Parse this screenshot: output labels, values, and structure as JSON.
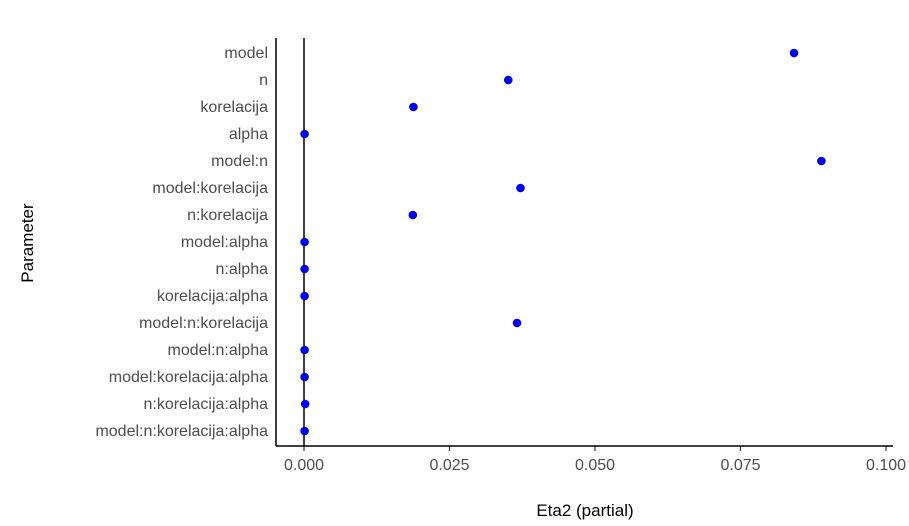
{
  "chart_data": {
    "type": "scatter",
    "xlabel": "Eta2 (partial)",
    "ylabel": "Parameter",
    "xlim": [
      -0.005,
      0.1
    ],
    "x_ticks": [
      0.0,
      0.025,
      0.05,
      0.075,
      0.1
    ],
    "x_tick_labels": [
      "0.000",
      "0.025",
      "0.050",
      "0.075",
      "0.100"
    ],
    "reference_line_x": 0,
    "grid": false,
    "point_color": "#0000ee",
    "categories": [
      "model",
      "n",
      "korelacija",
      "alpha",
      "model:n",
      "model:korelacija",
      "n:korelacija",
      "model:alpha",
      "n:alpha",
      "korelacija:alpha",
      "model:n:korelacija",
      "model:n:alpha",
      "model:korelacija:alpha",
      "n:korelacija:alpha",
      "model:n:korelacija:alpha"
    ],
    "values": [
      0.0842,
      0.0351,
      0.0188,
      0.0001,
      0.0889,
      0.0372,
      0.0187,
      0.0001,
      0.0001,
      0.0001,
      0.0366,
      0.0001,
      0.0001,
      0.0002,
      0.0001
    ]
  }
}
